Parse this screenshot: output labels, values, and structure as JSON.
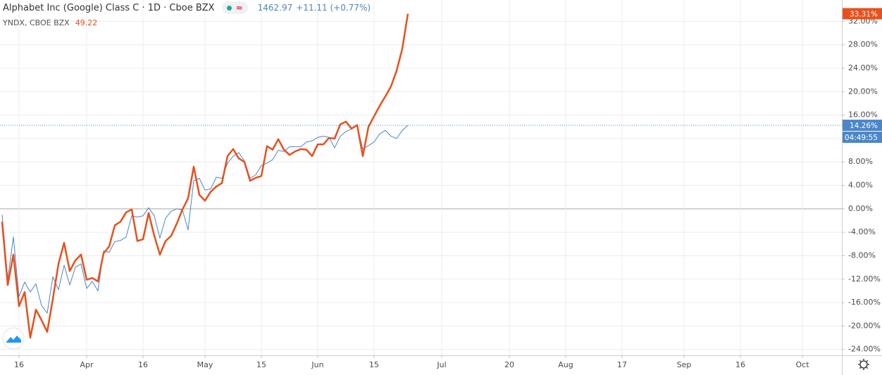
{
  "chart_data": {
    "type": "line",
    "interval": "1D",
    "exchange": "Cboe BZX",
    "price": "1462.97",
    "change": "+11.11 (+0.77%)",
    "compare_value": "49.22",
    "countdown": "04:49:55",
    "x": [
      -3,
      -2,
      -1,
      0,
      1,
      2,
      3,
      4,
      5,
      6,
      7,
      8,
      9,
      10,
      11,
      12,
      13,
      14,
      15,
      16,
      17,
      18,
      19,
      20,
      21,
      22,
      23,
      24,
      25,
      26,
      27,
      28,
      29,
      30,
      31,
      32,
      33,
      34,
      35,
      36,
      37,
      38,
      39,
      40,
      41,
      42,
      43,
      44,
      45,
      46,
      47,
      48,
      49,
      50,
      51,
      52,
      53,
      54,
      55,
      56,
      57,
      58,
      59,
      60,
      61,
      62,
      63,
      64,
      65,
      66,
      67,
      68,
      69
    ],
    "xlim": [
      -3.375,
      146
    ],
    "xticks": [
      {
        "value": 0,
        "label": "16"
      },
      {
        "value": 12,
        "label": "Apr"
      },
      {
        "value": 22,
        "label": "16"
      },
      {
        "value": 33,
        "label": "May"
      },
      {
        "value": 43,
        "label": "15"
      },
      {
        "value": 53,
        "label": "Jun"
      },
      {
        "value": 63,
        "label": "15"
      },
      {
        "value": 75,
        "label": "Jul"
      },
      {
        "value": 87,
        "label": "20"
      },
      {
        "value": 97,
        "label": "Aug"
      },
      {
        "value": 107,
        "label": "17"
      },
      {
        "value": 118,
        "label": "Sep"
      },
      {
        "value": 128,
        "label": "16"
      },
      {
        "value": 139,
        "label": "Oct"
      }
    ],
    "ylim": [
      -25,
      35.65
    ],
    "yticks": [
      {
        "value": -24,
        "label": "-24.00%"
      },
      {
        "value": -20,
        "label": "-20.00%"
      },
      {
        "value": -16,
        "label": "-16.00%"
      },
      {
        "value": -12,
        "label": "-12.00%"
      },
      {
        "value": -8,
        "label": "-8.00%"
      },
      {
        "value": -4,
        "label": "-4.00%"
      },
      {
        "value": 0,
        "label": "0.00%"
      },
      {
        "value": 4,
        "label": "4.00%"
      },
      {
        "value": 8,
        "label": "8.00%"
      },
      {
        "value": 12,
        "label": "12.00%"
      },
      {
        "value": 16,
        "label": "16.00%"
      },
      {
        "value": 20,
        "label": "20.00%"
      },
      {
        "value": 24,
        "label": "24.00%"
      },
      {
        "value": 28,
        "label": "28.00%"
      },
      {
        "value": 32,
        "label": "32.00%"
      }
    ],
    "grid": true,
    "series": [
      {
        "name": "Alphabet Inc (Google) Class C",
        "color": "#4a86c8",
        "width": 1,
        "last_label": "14.26%",
        "values": [
          -1,
          -12,
          -4.8,
          -15,
          -12.5,
          -14.2,
          -12.8,
          -16.5,
          -17.8,
          -11.6,
          -13.8,
          -9.6,
          -13,
          -10,
          -9.4,
          -13.6,
          -12.4,
          -14,
          -7.2,
          -7.4,
          -5.6,
          -5.4,
          -4.8,
          -1.2,
          -1.4,
          -1.2,
          0.2,
          -1.2,
          -5,
          -1.6,
          -0.4,
          0,
          -0.2,
          -3.6,
          4.8,
          5.2,
          3.2,
          3.4,
          5.4,
          5.2,
          7.8,
          9,
          9.6,
          8.2,
          5.2,
          5.8,
          7.4,
          7.8,
          8.4,
          10,
          9.8,
          10.6,
          10.6,
          10.6,
          11.4,
          11.6,
          12.2,
          12.4,
          12.2,
          10.4,
          12.4,
          13.2,
          13.6,
          14.2,
          10.2,
          10.8,
          11.4,
          12.8,
          13.4,
          12.4,
          12,
          13.4,
          14.26
        ]
      },
      {
        "name": "YNDX, CBOE BZX",
        "color": "#e8501b",
        "width": 2.5,
        "last_label": "33.31%",
        "values": [
          -2.2,
          -13,
          -7.8,
          -16.6,
          -14.2,
          -22,
          -17.2,
          -19,
          -21,
          -15.4,
          -9.4,
          -5.8,
          -10.6,
          -8.8,
          -7.8,
          -12.1,
          -11.8,
          -12.4,
          -7.6,
          -6.4,
          -2.8,
          -2.2,
          -0.6,
          -0.1,
          -5.5,
          -5.2,
          -0.7,
          -4.6,
          -7.8,
          -5.5,
          -4.6,
          -2.5,
          -0.1,
          1.8,
          7.2,
          2.4,
          1.4,
          2.9,
          3.8,
          4.4,
          9,
          10.2,
          8.6,
          8,
          4.8,
          5.3,
          5.6,
          10.7,
          10.1,
          11.9,
          10.1,
          9.2,
          9.8,
          10.2,
          10.1,
          9,
          11,
          11,
          12.1,
          12,
          14.4,
          14.9,
          13.7,
          14.3,
          9,
          14,
          15.8,
          17.6,
          19.2,
          20.9,
          23.6,
          27.3,
          33.31
        ]
      }
    ]
  }
}
